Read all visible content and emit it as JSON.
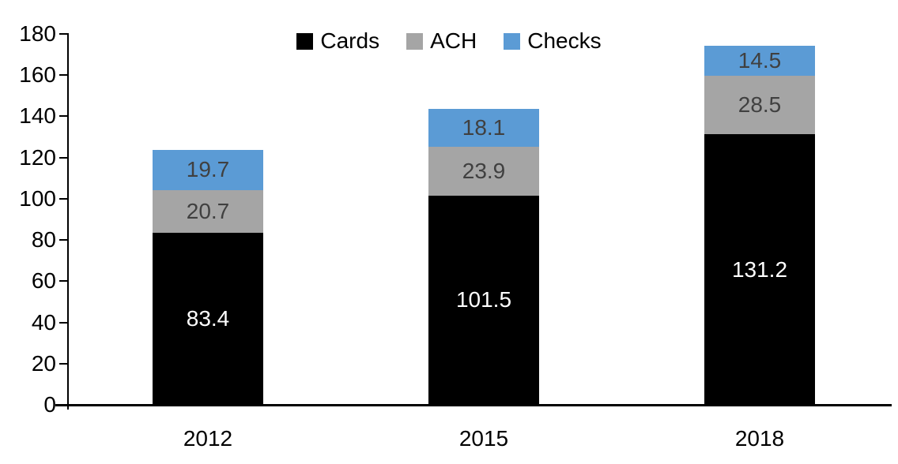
{
  "chart_data": {
    "type": "bar",
    "stacked": true,
    "title": "",
    "categories": [
      "2012",
      "2015",
      "2018"
    ],
    "series": [
      {
        "name": "Cards",
        "color": "#000000",
        "label_color": "#FFFFFF",
        "values": [
          83.4,
          101.5,
          131.2
        ]
      },
      {
        "name": "ACH",
        "color": "#A5A5A5",
        "label_color": "#404040",
        "values": [
          20.7,
          23.9,
          28.5
        ]
      },
      {
        "name": "Checks",
        "color": "#5B9BD5",
        "label_color": "#404040",
        "values": [
          19.7,
          18.1,
          14.5
        ]
      }
    ],
    "segment_labels": [
      [
        "83.4",
        "101.5",
        "131.2"
      ],
      [
        "20.7",
        "23.9",
        "28.5"
      ],
      [
        "19.7",
        "18.1",
        "14.5"
      ]
    ],
    "xlabel": "",
    "ylabel": "",
    "ylim": [
      0,
      180
    ],
    "y_ticks": [
      "0",
      "20",
      "40",
      "60",
      "80",
      "100",
      "120",
      "140",
      "160",
      "180"
    ],
    "grid": false,
    "legend_position": "top-center",
    "axis_color": "#000000",
    "tick_label_color": "#000000",
    "category_label_color": "#000000"
  }
}
